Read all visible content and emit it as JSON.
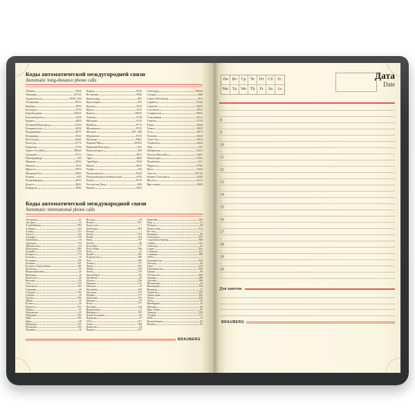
{
  "colors": {
    "cover": "#333436",
    "paper": "#fbf6e2",
    "accent_red": "#e0564e",
    "rule": "#ccc6a9"
  },
  "left_page": {
    "brand": "BRAUBERG",
    "sections": [
      {
        "title_ru": "Коды автоматической междугородней связи",
        "title_en": "Automatic long-distance phone calls",
        "entries": [
          [
            "Абакан",
            "3902"
          ],
          [
            "Анадырь",
            "42722"
          ],
          [
            "Архангельск",
            "8182, 818"
          ],
          [
            "Астрахань",
            "8512"
          ],
          [
            "Барнаул",
            "3852"
          ],
          [
            "Белгород",
            "4722"
          ],
          [
            "Биробиджан",
            "42622"
          ],
          [
            "Благовещенск",
            "4162"
          ],
          [
            "Брянск",
            "4832"
          ],
          [
            "Великий Новгород",
            "8162"
          ],
          [
            "Владивосток",
            "4232"
          ],
          [
            "Владикавказ",
            "8672"
          ],
          [
            "Владимир",
            "4922"
          ],
          [
            "Волгоград",
            "8442"
          ],
          [
            "Вологда",
            "8172"
          ],
          [
            "Воронеж",
            "4732"
          ],
          [
            "Горно-Алтайск",
            "38822"
          ],
          [
            "Грозный",
            "8712"
          ],
          [
            "Екатеринбург",
            "343"
          ],
          [
            "Иваново",
            "4932"
          ],
          [
            "Ижевск",
            "3412"
          ],
          [
            "Иркутск",
            "3952"
          ],
          [
            "Йошкар-Ола",
            "8362"
          ],
          [
            "Казань",
            "843"
          ],
          [
            "Калининград",
            "4012"
          ],
          [
            "Калуга",
            "4842"
          ],
          [
            "Кемерово",
            "3842"
          ],
          [
            "Киров",
            "8332"
          ],
          [
            "Кострома",
            "4942"
          ],
          [
            "Краснодар",
            "861"
          ],
          [
            "Красноярск",
            "391"
          ],
          [
            "Курган",
            "3522"
          ],
          [
            "Курск",
            "4712"
          ],
          [
            "Кызыл",
            "39422"
          ],
          [
            "Липецк",
            "4742"
          ],
          [
            "Магадан",
            "4132"
          ],
          [
            "Майкоп",
            "8772"
          ],
          [
            "Махачкала",
            "8722"
          ],
          [
            "Москва",
            "495, 499"
          ],
          [
            "Мурманск",
            "8152"
          ],
          [
            "Нальчик",
            "8662"
          ],
          [
            "Нарьян-Мар",
            "81853"
          ],
          [
            "Нижний Новгород",
            "831"
          ],
          [
            "Новосибирск",
            "383"
          ],
          [
            "Омск",
            "3812"
          ],
          [
            "Орёл",
            "4862"
          ],
          [
            "Оренбург",
            "3532"
          ],
          [
            "Пенза",
            "8412"
          ],
          [
            "Пермь",
            "342"
          ],
          [
            "Петрозаводск",
            "8142"
          ],
          [
            "Петропавловск-Камчатский",
            "4152"
          ],
          [
            "Псков",
            "8112"
          ],
          [
            "Ростов-на-Дону",
            "863"
          ],
          [
            "Рязань",
            "4912"
          ],
          [
            "Салехард",
            "34922"
          ],
          [
            "Самара",
            "846"
          ],
          [
            "Санкт-Петербург",
            "812"
          ],
          [
            "Саранск",
            "8342"
          ],
          [
            "Саратов",
            "8452"
          ],
          [
            "Смоленск",
            "4812"
          ],
          [
            "Ставрополь",
            "8652"
          ],
          [
            "Сыктывкар",
            "8212"
          ],
          [
            "Тамбов",
            "4752"
          ],
          [
            "Тверь",
            "4822"
          ],
          [
            "Томск",
            "3822"
          ],
          [
            "Тула",
            "4872"
          ],
          [
            "Тюмень",
            "3452"
          ],
          [
            "Улан-Удэ",
            "3012"
          ],
          [
            "Ульяновск",
            "8422"
          ],
          [
            "Уфа",
            "347"
          ],
          [
            "Хабаровск",
            "4212"
          ],
          [
            "Ханты-Мансийск",
            "3467"
          ],
          [
            "Чебоксары",
            "8352"
          ],
          [
            "Челябинск",
            "351"
          ],
          [
            "Черкесск",
            "8782"
          ],
          [
            "Чита",
            "3022"
          ],
          [
            "Элиста",
            "84722"
          ],
          [
            "Южно-Сахалинск",
            "4242"
          ],
          [
            "Якутск",
            "4112"
          ],
          [
            "Ярославль",
            "4852"
          ]
        ]
      },
      {
        "title_ru": "Коды автоматической международной связи",
        "title_en": "Automatic international phone calls",
        "entries": [
          [
            "Австралия",
            "61"
          ],
          [
            "Австрия",
            "43"
          ],
          [
            "Азербайджан",
            "994"
          ],
          [
            "Албания",
            "355"
          ],
          [
            "Алжир",
            "213"
          ],
          [
            "Ангола",
            "244"
          ],
          [
            "Андорра",
            "376"
          ],
          [
            "Аргентина",
            "54"
          ],
          [
            "Армения",
            "374"
          ],
          [
            "Афганистан",
            "93"
          ],
          [
            "Бангладеш",
            "880"
          ],
          [
            "Бахрейн",
            "973"
          ],
          [
            "Беларусь",
            "375"
          ],
          [
            "Бельгия",
            "32"
          ],
          [
            "Болгария",
            "359"
          ],
          [
            "Боливия",
            "591"
          ],
          [
            "Босния и Герцеговина",
            "387"
          ],
          [
            "Бразилия",
            "55"
          ],
          [
            "Великобритания",
            "44"
          ],
          [
            "Венгрия",
            "36"
          ],
          [
            "Венесуэла",
            "58"
          ],
          [
            "Вьетнам",
            "84"
          ],
          [
            "Гана",
            "233"
          ],
          [
            "Гватемала",
            "502"
          ],
          [
            "Германия",
            "49"
          ],
          [
            "Гондурас",
            "504"
          ],
          [
            "Греция",
            "30"
          ],
          [
            "Грузия",
            "995"
          ],
          [
            "Дания",
            "45"
          ],
          [
            "Египет",
            "20"
          ],
          [
            "Израиль",
            "972"
          ],
          [
            "Индия",
            "91"
          ],
          [
            "Индонезия",
            "62"
          ],
          [
            "Иордания",
            "962"
          ],
          [
            "Ирак",
            "964"
          ],
          [
            "Иран",
            "98"
          ],
          [
            "Ирландия",
            "353"
          ],
          [
            "Исландия",
            "354"
          ],
          [
            "Испания",
            "34"
          ],
          [
            "Италия",
            "39"
          ],
          [
            "Йемен",
            "967"
          ],
          [
            "Казахстан",
            "7"
          ],
          [
            "Камбоджа",
            "855"
          ],
          [
            "Канада",
            "1"
          ],
          [
            "Катар",
            "974"
          ],
          [
            "Кения",
            "254"
          ],
          [
            "Кипр",
            "357"
          ],
          [
            "Китай",
            "86"
          ],
          [
            "Колумбия",
            "57"
          ],
          [
            "Коста-Рика",
            "506"
          ],
          [
            "Куба",
            "53"
          ],
          [
            "Кувейт",
            "965"
          ],
          [
            "Кыргызстан",
            "996"
          ],
          [
            "Лаос",
            "856"
          ],
          [
            "Латвия",
            "371"
          ],
          [
            "Ливан",
            "961"
          ],
          [
            "Ливия",
            "218"
          ],
          [
            "Литва",
            "370"
          ],
          [
            "Люксембург",
            "352"
          ],
          [
            "Малайзия",
            "60"
          ],
          [
            "Мальта",
            "356"
          ],
          [
            "Марокко",
            "212"
          ],
          [
            "Мексика",
            "52"
          ],
          [
            "Мозамбик",
            "258"
          ],
          [
            "Молдова",
            "373"
          ],
          [
            "Монако",
            "377"
          ],
          [
            "Монголия",
            "976"
          ],
          [
            "Мьянма",
            "95"
          ],
          [
            "Непал",
            "977"
          ],
          [
            "Нигерия",
            "234"
          ],
          [
            "Нидерланды",
            "31"
          ],
          [
            "Никарагуа",
            "505"
          ],
          [
            "Новая Зеландия",
            "64"
          ],
          [
            "Норвегия",
            "47"
          ],
          [
            "ОАЭ",
            "971"
          ],
          [
            "Оман",
            "968"
          ],
          [
            "Пакистан",
            "92"
          ],
          [
            "Панама",
            "507"
          ],
          [
            "Парагвай",
            "595"
          ],
          [
            "Перу",
            "51"
          ],
          [
            "Польша",
            "48"
          ],
          [
            "Португалия",
            "351"
          ],
          [
            "Россия",
            "7"
          ],
          [
            "Румыния",
            "40"
          ],
          [
            "Сальвадор",
            "503"
          ],
          [
            "Саудовская Аравия",
            "966"
          ],
          [
            "Сербия",
            "381"
          ],
          [
            "Сингапур",
            "65"
          ],
          [
            "Сирия",
            "963"
          ],
          [
            "Словакия",
            "421"
          ],
          [
            "Словения",
            "386"
          ],
          [
            "США",
            "1"
          ],
          [
            "Таджикистан",
            "992"
          ],
          [
            "Таиланд",
            "66"
          ],
          [
            "Тунис",
            "216"
          ],
          [
            "Туркменистан",
            "993"
          ],
          [
            "Турция",
            "90"
          ],
          [
            "Узбекистан",
            "998"
          ],
          [
            "Украина",
            "380"
          ],
          [
            "Уругвай",
            "598"
          ],
          [
            "Филиппины",
            "63"
          ],
          [
            "Финляндия",
            "358"
          ],
          [
            "Франция",
            "33"
          ],
          [
            "Хорватия",
            "385"
          ],
          [
            "Черногория",
            "382"
          ],
          [
            "Чехия",
            "420"
          ],
          [
            "Чили",
            "56"
          ],
          [
            "Швейцария",
            "41"
          ],
          [
            "Швеция",
            "46"
          ],
          [
            "Шри-Ланка",
            "94"
          ],
          [
            "Эквадор",
            "593"
          ],
          [
            "Эстония",
            "372"
          ],
          [
            "ЮАР",
            "27"
          ],
          [
            "Южная Корея",
            "82"
          ],
          [
            "Япония",
            "81"
          ]
        ]
      }
    ]
  },
  "right_page": {
    "days_ru": [
      "Пн",
      "Вт",
      "Ср",
      "Чт",
      "Пт",
      "Сб",
      "Вс"
    ],
    "days_en": [
      "Mo",
      "Tu",
      "We",
      "Th",
      "Fr",
      "Sa",
      "Su"
    ],
    "date_label_ru": "Дата",
    "date_label_en": "Date",
    "hours": [
      8,
      9,
      10,
      11,
      12,
      13,
      14,
      15,
      16,
      17,
      18,
      19,
      20
    ],
    "hour_marker": "▪",
    "notes_label": "Для заметок",
    "brand": "BRAUBERG"
  }
}
